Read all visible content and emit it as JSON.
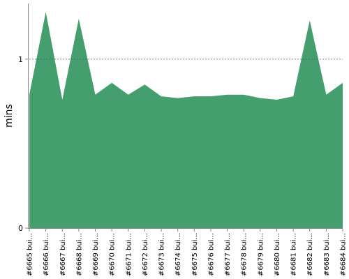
{
  "chart_data": {
    "type": "area",
    "ylabel": "mins",
    "y_ticks": [
      0,
      1
    ],
    "ylim": [
      0,
      1.33
    ],
    "reference_line": {
      "value": 1,
      "style": "dotted"
    },
    "categories": [
      "#6665 bui...",
      "#6666 bui...",
      "#6667 bui...",
      "#6668 bui...",
      "#6669 bui...",
      "#6670 bui...",
      "#6671 bui...",
      "#6672 bui...",
      "#6673 bui...",
      "#6674 bui...",
      "#6675 bui...",
      "#6676 bui...",
      "#6677 bui...",
      "#6678 bui...",
      "#6679 bui...",
      "#6680 bui...",
      "#6681 bui...",
      "#6682 bui...",
      "#6683 bui...",
      "#6684 bui..."
    ],
    "values": [
      0.79,
      1.28,
      0.76,
      1.24,
      0.79,
      0.86,
      0.79,
      0.85,
      0.78,
      0.77,
      0.78,
      0.78,
      0.79,
      0.79,
      0.77,
      0.76,
      0.78,
      1.23,
      0.79,
      0.86
    ],
    "colors": {
      "fill": "#459e6e",
      "axis": "#888888",
      "reference": "#555555"
    }
  }
}
